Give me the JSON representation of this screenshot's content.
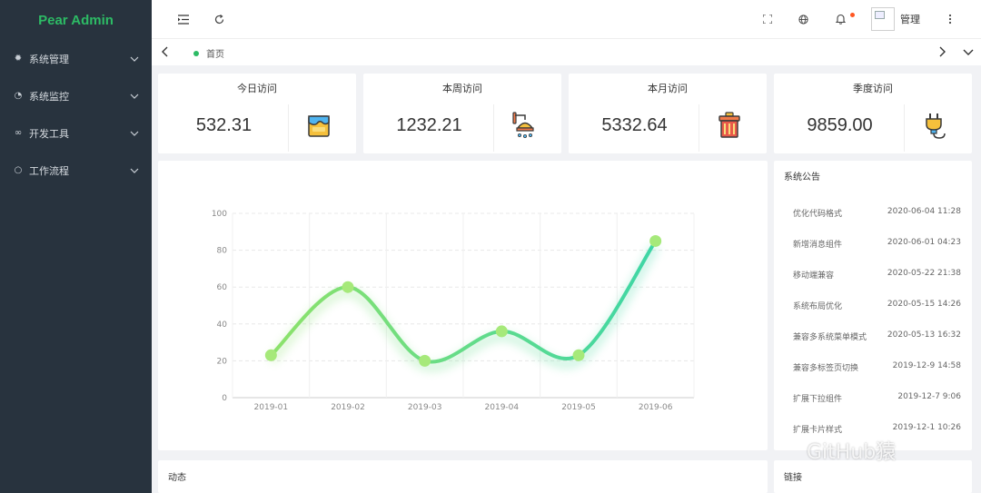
{
  "app": {
    "logo_text": "Pear Admin"
  },
  "sidebar": {
    "items": [
      {
        "label": "系统管理",
        "icon": "gear-icon"
      },
      {
        "label": "系统监控",
        "icon": "dashboard-icon"
      },
      {
        "label": "开发工具",
        "icon": "infinity-icon"
      },
      {
        "label": "工作流程",
        "icon": "circle-icon"
      }
    ]
  },
  "header": {
    "username": "管理"
  },
  "tabs": {
    "home_label": "首页"
  },
  "stats": [
    {
      "title": "今日访问",
      "value": "532.31",
      "icon": "paint-bucket-icon"
    },
    {
      "title": "本周访问",
      "value": "1232.21",
      "icon": "shower-icon"
    },
    {
      "title": "本月访问",
      "value": "5332.64",
      "icon": "trash-can-icon"
    },
    {
      "title": "季度访问",
      "value": "9859.00",
      "icon": "plug-icon"
    }
  ],
  "chart_data": {
    "type": "line",
    "categories": [
      "2019-01",
      "2019-02",
      "2019-03",
      "2019-04",
      "2019-05",
      "2019-06"
    ],
    "values": [
      23,
      60,
      20,
      36,
      23,
      85
    ],
    "yticks": [
      "0",
      "20",
      "40",
      "60",
      "80",
      "100"
    ],
    "ylim": [
      0,
      100
    ],
    "smooth": true,
    "grid": true,
    "line_color_start": "#8de26b",
    "line_color_end": "#3dd6a6",
    "point_color": "#a6e97a"
  },
  "notice": {
    "title": "系统公告",
    "items": [
      {
        "title": "优化代码格式",
        "date": "2020-06-04 11:28"
      },
      {
        "title": "新增消息组件",
        "date": "2020-06-01 04:23"
      },
      {
        "title": "移动端兼容",
        "date": "2020-05-22 21:38"
      },
      {
        "title": "系统布局优化",
        "date": "2020-05-15 14:26"
      },
      {
        "title": "兼容多系统菜单模式",
        "date": "2020-05-13 16:32"
      },
      {
        "title": "兼容多标签页切换",
        "date": "2019-12-9 14:58"
      },
      {
        "title": "扩展下拉组件",
        "date": "2019-12-7 9:06"
      },
      {
        "title": "扩展卡片样式",
        "date": "2019-12-1 10:26"
      }
    ]
  },
  "bottom": {
    "left_title": "动态",
    "right_title": "链接"
  },
  "watermark": "GitHub猿",
  "colors": {
    "accent": "#2dbb65",
    "sidebar_bg": "#28333e",
    "badge": "#ff5722"
  }
}
